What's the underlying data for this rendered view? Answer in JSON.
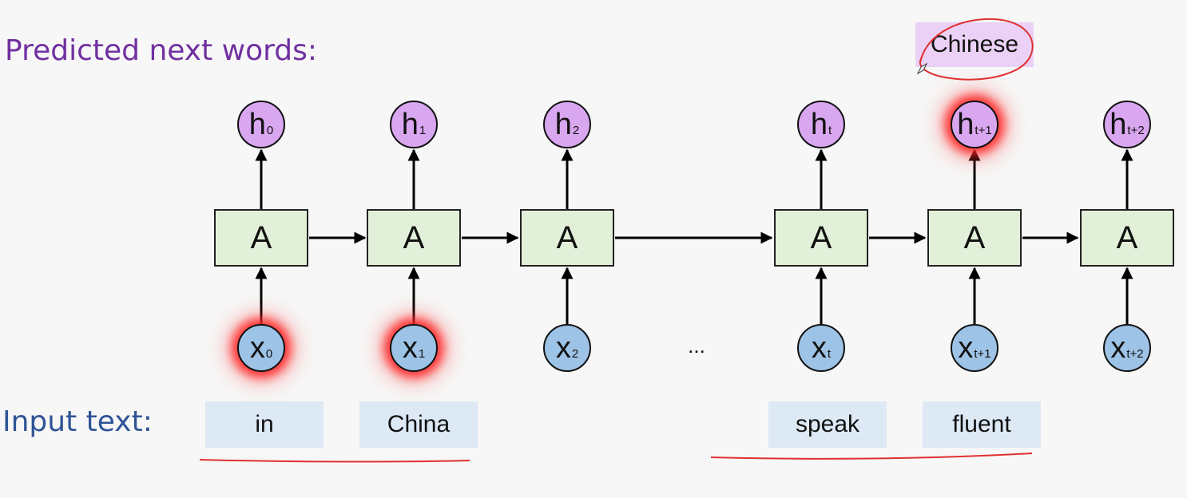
{
  "titles": {
    "predicted": "Predicted next words:",
    "input": "Input text:"
  },
  "predicted_word": "Chinese",
  "ellipsis": "...",
  "cells": [
    {
      "box": "A",
      "h_main": "h",
      "h_sub": "0",
      "x_main": "x",
      "x_sub": "0"
    },
    {
      "box": "A",
      "h_main": "h",
      "h_sub": "1",
      "x_main": "x",
      "x_sub": "1"
    },
    {
      "box": "A",
      "h_main": "h",
      "h_sub": "2",
      "x_main": "x",
      "x_sub": "2"
    },
    {
      "box": "A",
      "h_main": "h",
      "h_sub": "t",
      "x_main": "x",
      "x_sub": "t"
    },
    {
      "box": "A",
      "h_main": "h",
      "h_sub": "t+1",
      "x_main": "x",
      "x_sub": "t+1"
    },
    {
      "box": "A",
      "h_main": "h",
      "h_sub": "t+2",
      "x_main": "x",
      "x_sub": "t+2"
    }
  ],
  "input_words": [
    "in",
    "China",
    "speak",
    "fluent"
  ],
  "colors": {
    "cell_fill": "#e2f0d9",
    "hidden_node": "#d9a6f0",
    "input_node": "#9dc3e6",
    "highlight_glow": "#ff2020",
    "annotation_ink": "#e03030"
  }
}
